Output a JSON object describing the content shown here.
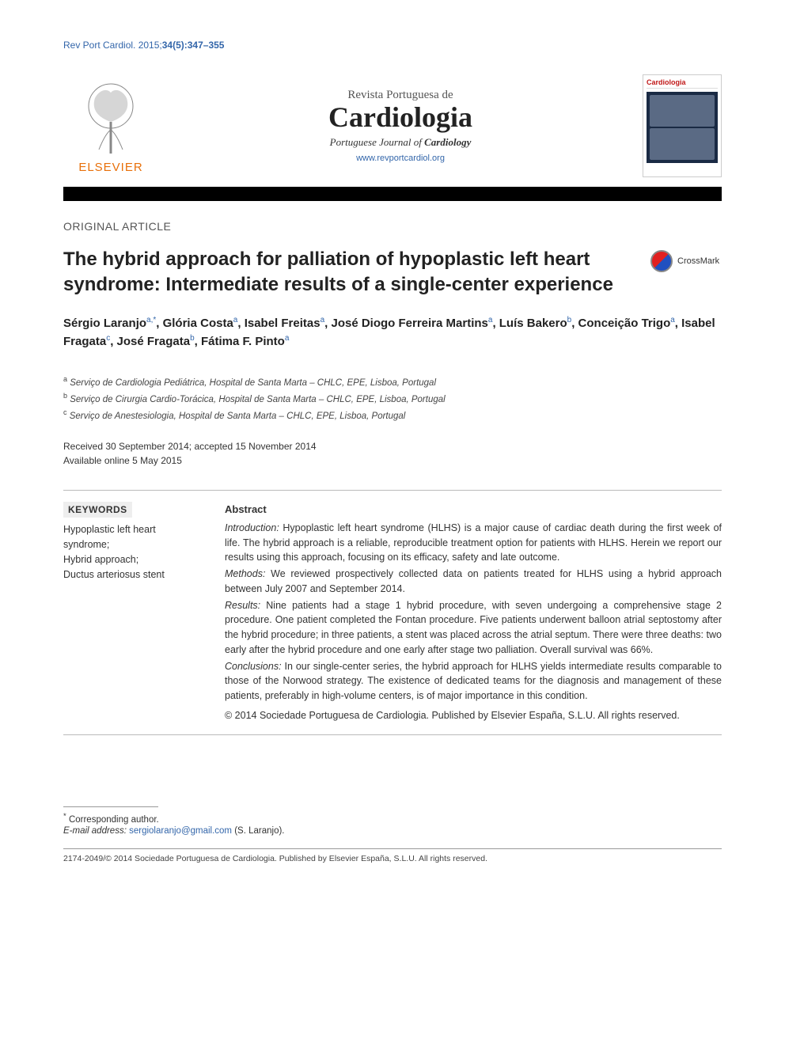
{
  "colors": {
    "link": "#3366aa",
    "elsevier_orange": "#e8700a",
    "text": "#333333",
    "rule": "#999999",
    "black_bar": "#000000",
    "kw_bg": "#eeeeee"
  },
  "running_head": {
    "journal_abbrev": "Rev Port Cardiol. 2015;",
    "citation": "34(5):347–355"
  },
  "masthead": {
    "publisher": "ELSEVIER",
    "journal_overline": "Revista Portuguesa de",
    "journal_name": "Cardiologia",
    "journal_subtitle_pre": "Portuguese Journal of ",
    "journal_subtitle_bold": "Cardiology",
    "url": "www.revportcardiol.org",
    "cover_title": "Cardiologia"
  },
  "article_type": "ORIGINAL ARTICLE",
  "crossmark_label": "CrossMark",
  "title": "The hybrid approach for palliation of hypoplastic left heart syndrome: Intermediate results of a single-center experience",
  "authors_html": "Sérgio Laranjo<sup>a,*</sup>, Glória Costa<sup>a</sup>, Isabel Freitas<sup>a</sup>, José Diogo Ferreira Martins<sup>a</sup>, Luís Bakero<sup>b</sup>, Conceição Trigo<sup>a</sup>, Isabel Fragata<sup>c</sup>, José Fragata<sup>b</sup>, Fátima F. Pinto<sup>a</sup>",
  "affiliations": [
    {
      "mark": "a",
      "text": "Serviço de Cardiologia Pediátrica, Hospital de Santa Marta – CHLC, EPE, Lisboa, Portugal"
    },
    {
      "mark": "b",
      "text": "Serviço de Cirurgia Cardio-Torácica, Hospital de Santa Marta – CHLC, EPE, Lisboa, Portugal"
    },
    {
      "mark": "c",
      "text": "Serviço de Anestesiologia, Hospital de Santa Marta – CHLC, EPE, Lisboa, Portugal"
    }
  ],
  "dates": {
    "received_accepted": "Received 30 September 2014; accepted 15 November 2014",
    "online": "Available online 5 May 2015"
  },
  "keywords": {
    "heading": "KEYWORDS",
    "items": [
      "Hypoplastic left heart syndrome;",
      "Hybrid approach;",
      "Ductus arteriosus stent"
    ]
  },
  "abstract": {
    "heading": "Abstract",
    "sections": [
      {
        "label": "Introduction:",
        "text": " Hypoplastic left heart syndrome (HLHS) is a major cause of cardiac death during the first week of life. The hybrid approach is a reliable, reproducible treatment option for patients with HLHS. Herein we report our results using this approach, focusing on its efficacy, safety and late outcome."
      },
      {
        "label": "Methods:",
        "text": " We reviewed prospectively collected data on patients treated for HLHS using a hybrid approach between July 2007 and September 2014."
      },
      {
        "label": "Results:",
        "text": " Nine patients had a stage 1 hybrid procedure, with seven undergoing a comprehensive stage 2 procedure. One patient completed the Fontan procedure. Five patients underwent balloon atrial septostomy after the hybrid procedure; in three patients, a stent was placed across the atrial septum. There were three deaths: two early after the hybrid procedure and one early after stage two palliation. Overall survival was 66%."
      },
      {
        "label": "Conclusions:",
        "text": " In our single-center series, the hybrid approach for HLHS yields intermediate results comparable to those of the Norwood strategy. The existence of dedicated teams for the diagnosis and management of these patients, preferably in high-volume centers, is of major importance in this condition."
      }
    ],
    "copyright": "© 2014 Sociedade Portuguesa de Cardiologia. Published by Elsevier España, S.L.U. All rights reserved."
  },
  "footer": {
    "corr_mark": "*",
    "corr_text": "Corresponding author.",
    "email_label": "E-mail address: ",
    "email": "sergiolaranjo@gmail.com",
    "email_suffix": " (S. Laranjo).",
    "issn_line": "2174-2049/© 2014 Sociedade Portuguesa de Cardiologia. Published by Elsevier España, S.L.U. All rights reserved."
  }
}
